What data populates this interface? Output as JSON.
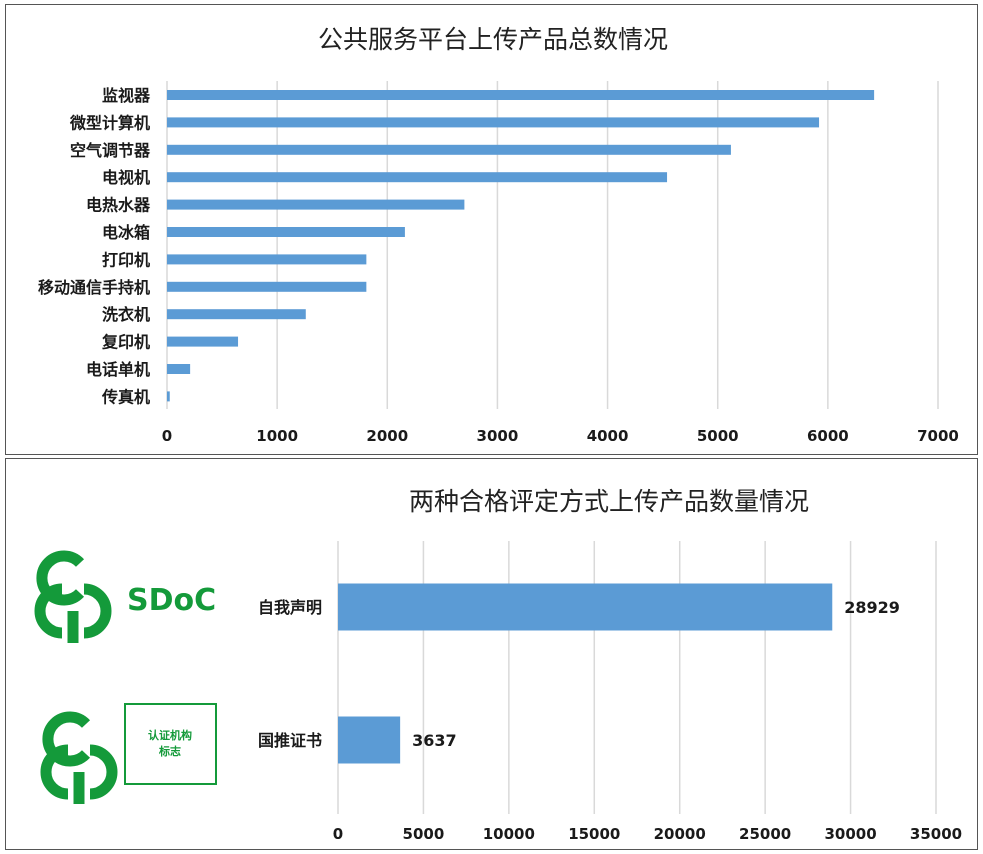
{
  "chart_data": [
    {
      "type": "bar",
      "orientation": "horizontal",
      "title": "公共服务平台上传产品总数情况",
      "categories": [
        "监视器",
        "微型计算机",
        "空气调节器",
        "电视机",
        "电热水器",
        "电冰箱",
        "打印机",
        "移动通信手持机",
        "洗衣机",
        "复印机",
        "电话单机",
        "传真机"
      ],
      "values": [
        6420,
        5920,
        5120,
        4540,
        2700,
        2160,
        1810,
        1810,
        1260,
        645,
        210,
        25
      ],
      "xlim": [
        0,
        7000
      ],
      "xticks": [
        0,
        1000,
        2000,
        3000,
        4000,
        5000,
        6000,
        7000
      ],
      "grid": true,
      "bar_color": "#5b9bd5"
    },
    {
      "type": "bar",
      "orientation": "horizontal",
      "title": "两种合格评定方式上传产品数量情况",
      "categories": [
        "自我声明",
        "国推证书"
      ],
      "values": [
        28929,
        3637
      ],
      "data_labels": [
        "28929",
        "3637"
      ],
      "xlim": [
        0,
        35000
      ],
      "xticks": [
        0,
        5000,
        10000,
        15000,
        20000,
        25000,
        30000,
        35000
      ],
      "grid": true,
      "bar_color": "#5b9bd5"
    }
  ],
  "logos": {
    "sdoc_text": "SDoC",
    "cert_box_line1": "认证机构",
    "cert_box_line2": "标志",
    "logo_color": "#149a3a"
  }
}
